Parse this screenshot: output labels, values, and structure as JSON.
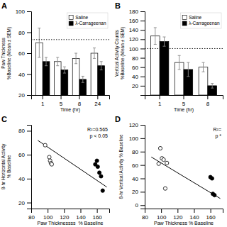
{
  "chart_data": [
    {
      "type": "bar",
      "title": "A",
      "categories": [
        "1",
        "5",
        "8",
        "24"
      ],
      "series": [
        {
          "name": "Saline",
          "color": "white",
          "values": [
            70,
            52,
            55,
            60
          ],
          "error": [
            14,
            4,
            5,
            5
          ]
        },
        {
          "name": "λ-Carrageenan",
          "color": "black",
          "values": [
            52,
            44,
            35,
            48
          ],
          "error": [
            4,
            3,
            3,
            4
          ]
        }
      ],
      "xlabel": "Time (hr)",
      "ylabel": "Paw Thickness\n%Baseline (Mean ± SEM)",
      "ylim": [
        20,
        100
      ],
      "yticks": [
        20,
        40,
        60,
        80,
        100
      ],
      "hline": 73,
      "legend": "upper right",
      "grid": false
    },
    {
      "type": "bar",
      "title": "B",
      "categories": [
        "1",
        "5",
        "8"
      ],
      "series": [
        {
          "name": "Saline",
          "color": "white",
          "values": [
            127,
            70,
            60
          ],
          "error": [
            18,
            15,
            10
          ]
        },
        {
          "name": "λ-Carrageenan",
          "color": "black",
          "values": [
            115,
            55,
            20
          ],
          "error": [
            10,
            15,
            5
          ]
        }
      ],
      "xlabel": "Time (hr)",
      "ylabel": "Vertical Activity Counts\n%Baseline (Mean ± SEM)",
      "ylim": [
        0,
        180
      ],
      "yticks": [
        20,
        40,
        60,
        80,
        100,
        120,
        140,
        160,
        180
      ],
      "hline": 100,
      "legend": "upper right",
      "grid": false
    },
    {
      "type": "scatter",
      "title": "C",
      "series": [
        {
          "type": "scatter",
          "color": "white",
          "x": [
            97,
            102,
            103,
            104,
            105
          ],
          "values": [
            68,
            58,
            55,
            53,
            52
          ]
        },
        {
          "type": "scatter",
          "color": "black",
          "x": [
            158,
            160,
            161,
            163,
            165,
            167
          ],
          "values": [
            52,
            55,
            50,
            45,
            42,
            30
          ]
        },
        {
          "type": "line",
          "color": "black",
          "x": [
            88,
            172
          ],
          "values": [
            72,
            33
          ]
        }
      ],
      "xlabel": "Paw Thicknessss  % Baseline",
      "ylabel": "8-hr Horizontal Activity\n% Baseline",
      "xlim": [
        80,
        175
      ],
      "ylim": [
        15,
        85
      ],
      "xticks": [
        80,
        100,
        120,
        140,
        160
      ],
      "yticks": [
        20,
        40,
        60,
        80
      ],
      "annotations": [
        "R²=0.565",
        "p < 0.05"
      ],
      "grid": false
    },
    {
      "type": "scatter",
      "title": "D",
      "series": [
        {
          "type": "scatter",
          "color": "white",
          "x": [
            97,
            99,
            101,
            103,
            105,
            107
          ],
          "values": [
            62,
            85,
            70,
            68,
            25,
            63
          ]
        },
        {
          "type": "scatter",
          "color": "black",
          "x": [
            160,
            162,
            163,
            165
          ],
          "values": [
            42,
            40,
            17,
            15
          ]
        },
        {
          "type": "line",
          "color": "black",
          "x": [
            88,
            172
          ],
          "values": [
            72,
            10
          ]
        }
      ],
      "xlabel": "Paw Thickness % Baseline",
      "ylabel": "8-hr Vertical Activity % Baseline",
      "xlim": [
        80,
        175
      ],
      "ylim": [
        -5,
        120
      ],
      "xticks": [
        80,
        100,
        120,
        140,
        160
      ],
      "yticks": [
        0,
        20,
        40,
        60,
        80,
        100,
        120
      ],
      "annotations": [
        "R²=",
        "p *"
      ],
      "grid": false
    }
  ]
}
